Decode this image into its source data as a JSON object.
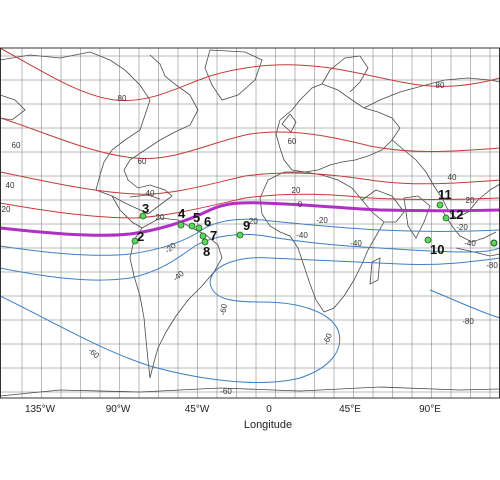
{
  "map": {
    "xlabel": "Longitude",
    "lon_ticks": [
      "135°W",
      "90°W",
      "45°W",
      "0",
      "45°E",
      "90°E"
    ],
    "colors": {
      "positive": "#c23b3b",
      "negative": "#3d7fc4",
      "zero": "#b02fc4",
      "marker": "#5cd65c",
      "grid": "#777777",
      "coast": "#4a4a4a"
    },
    "contour_labels": {
      "p80a": "80",
      "p80b": "80",
      "p60a": "60",
      "p60b": "60",
      "p60c": "60",
      "p40a": "40",
      "p40b": "40",
      "p40c": "40",
      "p20a": "20",
      "p20b": "20",
      "p20c": "20",
      "p20d": "20",
      "z0": "0",
      "m20a": "-20",
      "m20b": "-20",
      "m20c": "-20",
      "m20d": "-20",
      "m40a": "-40",
      "m40b": "-40",
      "m40c": "-40",
      "m40d": "-40",
      "m60a": "-60",
      "m60b": "-60",
      "m60c": "-60",
      "m60d": "-60",
      "m80a": "-80",
      "m80b": "-80"
    },
    "stations": [
      {
        "label": "2"
      },
      {
        "label": "3"
      },
      {
        "label": "4"
      },
      {
        "label": "5"
      },
      {
        "label": "6"
      },
      {
        "label": "7"
      },
      {
        "label": "8"
      },
      {
        "label": "9"
      },
      {
        "label": "10"
      },
      {
        "label": "11"
      },
      {
        "label": "12"
      }
    ]
  }
}
